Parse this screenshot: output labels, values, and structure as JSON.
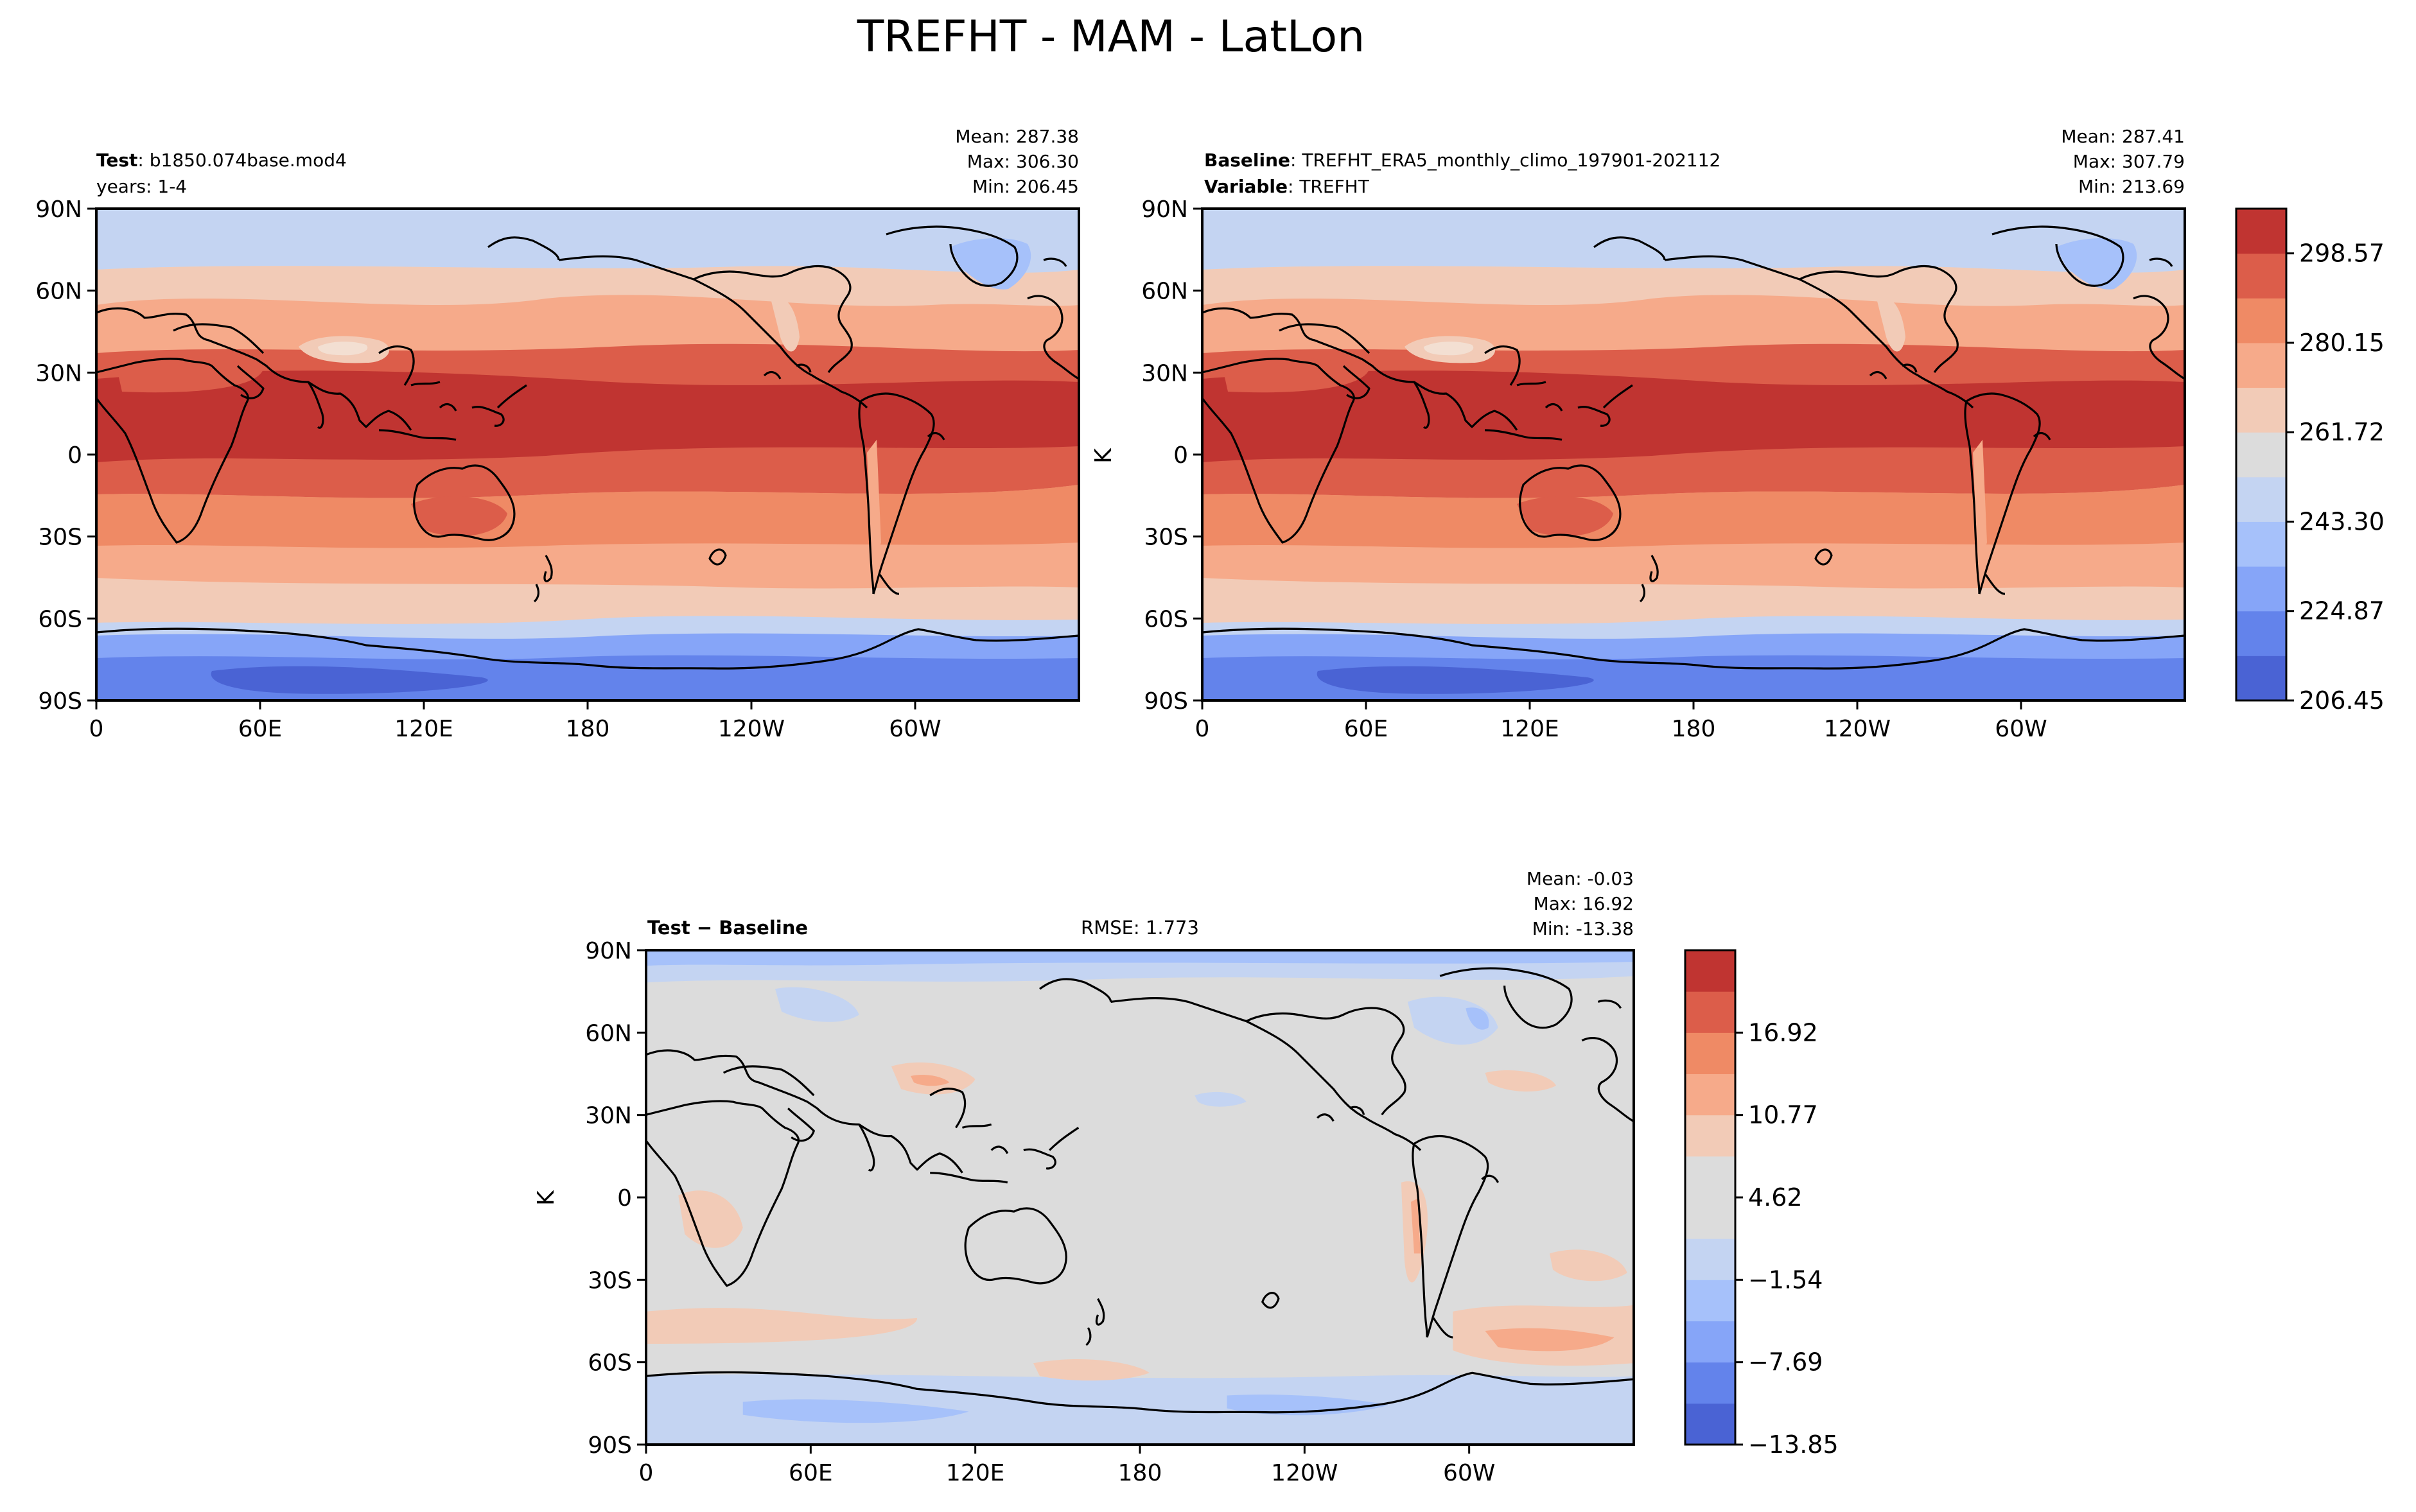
{
  "figure": {
    "title": "TREFHT - MAM - LatLon"
  },
  "chart_data": [
    {
      "type": "heatmap",
      "panel": "test",
      "label_bold": "Test",
      "label_text": "b1850.074base.mod4",
      "label2_text": "years: 1-4",
      "stats": {
        "mean": "Mean: 287.38",
        "max": "Max: 306.30",
        "min": "Min: 206.45"
      },
      "xticks": [
        "0",
        "60E",
        "120E",
        "180",
        "120W",
        "60W"
      ],
      "yticks": [
        "90N",
        "60N",
        "30N",
        "0",
        "30S",
        "60S",
        "90S"
      ],
      "ylabel": "",
      "value_range": [
        206.45,
        306.3
      ]
    },
    {
      "type": "heatmap",
      "panel": "baseline",
      "label_bold": "Baseline",
      "label_text": "TREFHT_ERA5_monthly_climo_197901-202112",
      "label2_bold": "Variable",
      "label2_text": "TREFHT",
      "stats": {
        "mean": "Mean: 287.41",
        "max": "Max: 307.79",
        "min": "Min: 213.69"
      },
      "xticks": [
        "0",
        "60E",
        "120E",
        "180",
        "120W",
        "60W"
      ],
      "yticks": [
        "90N",
        "60N",
        "30N",
        "0",
        "30S",
        "60S",
        "90S"
      ],
      "ylabel": "K",
      "value_range": [
        213.69,
        307.79
      ],
      "colorbar": {
        "colors": [
          "#4a63d4",
          "#6383eb",
          "#86a5f8",
          "#a6c1fa",
          "#c4d4f2",
          "#dcdcdc",
          "#f2cbb7",
          "#f6aa8a",
          "#ef8a65",
          "#dc5d4a",
          "#c03431"
        ],
        "tick_labels": [
          "206.45",
          "224.87",
          "243.30",
          "261.72",
          "280.15",
          "298.57"
        ]
      }
    },
    {
      "type": "heatmap",
      "panel": "difference",
      "label_bold": "Test − Baseline",
      "center_text": "RMSE: 1.773",
      "stats": {
        "mean": "Mean: -0.03",
        "max": "Max: 16.92",
        "min": "Min: -13.38"
      },
      "xticks": [
        "0",
        "60E",
        "120E",
        "180",
        "120W",
        "60W"
      ],
      "yticks": [
        "90N",
        "60N",
        "30N",
        "0",
        "30S",
        "60S",
        "90S"
      ],
      "ylabel": "K",
      "value_range": [
        -13.38,
        16.92
      ],
      "colorbar": {
        "colors": [
          "#4a63d4",
          "#6383eb",
          "#86a5f8",
          "#a6c1fa",
          "#c4d4f2",
          "#dcdcdc",
          "#dcdcdc",
          "#f2cbb7",
          "#f6aa8a",
          "#ef8a65",
          "#dc5d4a",
          "#c03431"
        ],
        "tick_labels": [
          "−13.85",
          "−7.69",
          "−1.54",
          "4.62",
          "10.77",
          "16.92"
        ]
      }
    }
  ],
  "palette": {
    "c1": "#4a63d4",
    "c2": "#6383eb",
    "c3": "#86a5f8",
    "c4": "#a6c1fa",
    "c5": "#c4d4f2",
    "c6": "#dcdcdc",
    "c7": "#f2cbb7",
    "c8": "#f6aa8a",
    "c9": "#ef8a65",
    "c10": "#dc5d4a",
    "c11": "#c03431",
    "c12": "#f3dfd2"
  }
}
